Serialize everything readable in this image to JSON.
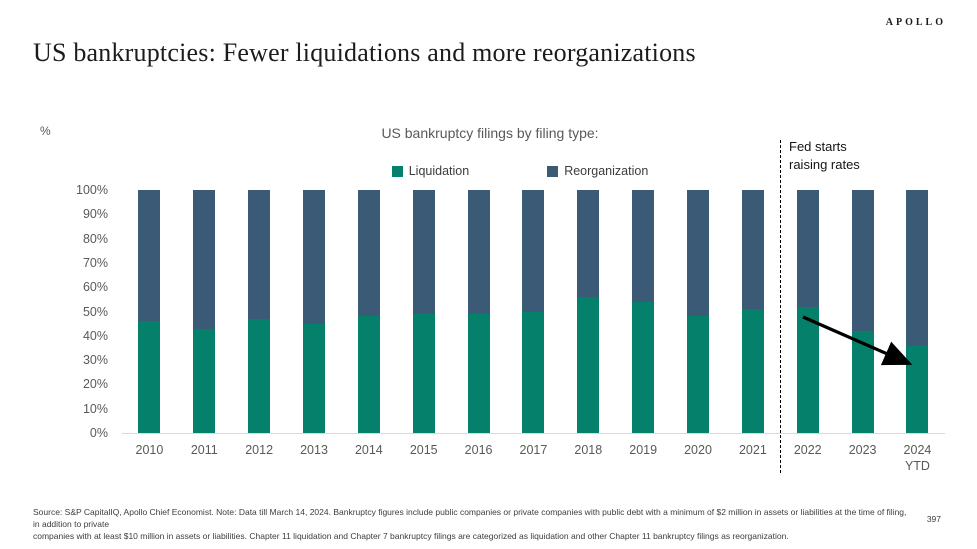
{
  "header": {
    "logo": "APOLLO",
    "title": "US bankruptcies: Fewer liquidations and more reorganizations"
  },
  "chart": {
    "unit_label": "%",
    "title": "US bankruptcy filings by filing type:",
    "annotation": "Fed starts\nraising rates"
  },
  "chart_data": {
    "type": "bar",
    "stacked": true,
    "percent_stacked": true,
    "title": "US bankruptcy filings by filing type:",
    "xlabel": "",
    "ylabel": "%",
    "ylim": [
      0,
      100
    ],
    "ytick_step": 10,
    "yticks": [
      "0%",
      "10%",
      "20%",
      "30%",
      "40%",
      "50%",
      "60%",
      "70%",
      "80%",
      "90%",
      "100%"
    ],
    "grid": false,
    "legend_position": "top",
    "categories": [
      "2010",
      "2011",
      "2012",
      "2013",
      "2014",
      "2015",
      "2016",
      "2017",
      "2018",
      "2019",
      "2020",
      "2021",
      "2022",
      "2023",
      "2024\nYTD"
    ],
    "series": [
      {
        "name": "Liquidation",
        "color": "#05806A",
        "values": [
          46,
          43,
          47,
          45,
          48,
          49,
          49,
          50,
          56,
          54,
          48,
          51,
          52,
          42,
          36
        ]
      },
      {
        "name": "Reorganization",
        "color": "#3A5A76",
        "values": [
          54,
          57,
          53,
          55,
          52,
          51,
          51,
          50,
          44,
          46,
          52,
          49,
          48,
          58,
          64
        ]
      }
    ],
    "annotations": [
      {
        "type": "text",
        "text": "Fed starts raising rates",
        "position": "right of dashed line, above 2022 bar"
      },
      {
        "type": "dashed-vline",
        "between": [
          "2021",
          "2022"
        ]
      },
      {
        "type": "arrow",
        "from": "top of 2022 liquidation segment",
        "to": "2024 YTD liquidation segment",
        "color": "#000000"
      }
    ]
  },
  "footer": {
    "line1": "Source: S&P CapitalIQ, Apollo Chief Economist. Note: Data till March 14, 2024. Bankruptcy figures include public companies or private companies with public debt with a minimum of $2 million in assets or liabilities at the time of filing, in addition to private",
    "line2": "companies with at least $10 million in assets or liabilities. Chapter 11 liquidation and Chapter 7 bankruptcy filings are categorized as liquidation and other Chapter 11 bankruptcy filings as reorganization.",
    "page_number": "397"
  }
}
